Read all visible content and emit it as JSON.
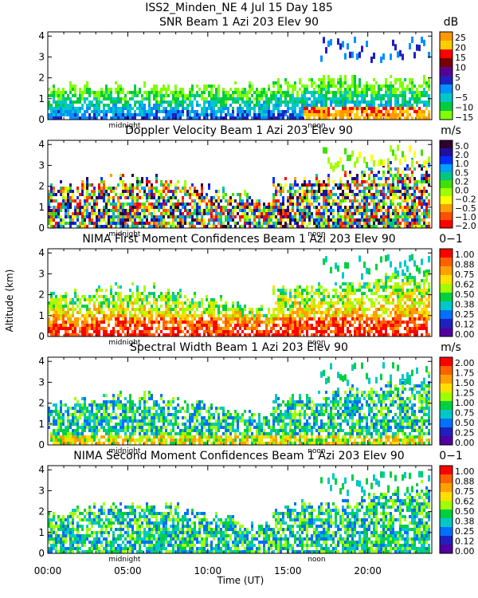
{
  "header": "ISS2_Minden_NE    4 Jul 15 Day 185",
  "ylabel": "Altitude (km)",
  "xlabel": "Time (UT)",
  "x_ticks": [
    "00:00",
    "05:00",
    "10:00",
    "15:00",
    "20:00"
  ],
  "annotations": {
    "midnight": "midnight",
    "noon": "noon"
  },
  "chart_data": [
    {
      "type": "heatmap",
      "title": "SNR Beam 1 Azi 203 Elev 90",
      "units": "dB",
      "y_ticks": [
        "0",
        "1",
        "2",
        "3",
        "4"
      ],
      "ylim": [
        0,
        4.2
      ],
      "xlim_hours": [
        0,
        24
      ],
      "colorbar_labels": [
        "25",
        "20",
        "15",
        "10",
        "5",
        "0",
        "−5",
        "−10",
        "−15"
      ],
      "colors": [
        "#ff9900",
        "#ffcc00",
        "#ff0000",
        "#7a0000",
        "#5a0090",
        "#2020c0",
        "#0090ff",
        "#00c8c8",
        "#00cc40",
        "#80ff00"
      ]
    },
    {
      "type": "heatmap",
      "title": "Doppler Velocity Beam 1 Azi 203 Elev 90",
      "units": "m/s",
      "y_ticks": [
        "0",
        "1",
        "2",
        "3",
        "4"
      ],
      "ylim": [
        0,
        4.2
      ],
      "xlim_hours": [
        0,
        24
      ],
      "colorbar_labels": [
        "5.0",
        "2.0",
        "1.0",
        "0.5",
        "0.2",
        "0.0",
        "−0.2",
        "−0.5",
        "−1.0",
        "−2.0"
      ],
      "colors": [
        "#300030",
        "#2010a0",
        "#0030ff",
        "#00a0ff",
        "#00c880",
        "#40e000",
        "#a0ff00",
        "#ffff00",
        "#ffa000",
        "#ff5000",
        "#ff0000"
      ]
    },
    {
      "type": "heatmap",
      "title": "NIMA First Moment Confidences Beam 1 Azi 203 Elev 90",
      "units": "0−1",
      "y_ticks": [
        "0",
        "1",
        "2",
        "3",
        "4"
      ],
      "ylim": [
        0,
        4.2
      ],
      "xlim_hours": [
        0,
        24
      ],
      "colorbar_labels": [
        "1.00",
        "0.88",
        "0.75",
        "0.62",
        "0.50",
        "0.38",
        "0.25",
        "0.12",
        "0.00"
      ],
      "colors": [
        "#ff0000",
        "#ff6000",
        "#ffa000",
        "#ffe000",
        "#a0ff00",
        "#00d040",
        "#00c8c8",
        "#0070ff",
        "#2020c0",
        "#5000a0"
      ]
    },
    {
      "type": "heatmap",
      "title": "Spectral Width Beam 1 Azi 203 Elev 90",
      "units": "m/s",
      "y_ticks": [
        "0",
        "1",
        "2",
        "3",
        "4"
      ],
      "ylim": [
        0,
        4.2
      ],
      "xlim_hours": [
        0,
        24
      ],
      "colorbar_labels": [
        "2.00",
        "1.75",
        "1.50",
        "1.25",
        "1.00",
        "0.75",
        "0.50",
        "0.25",
        "0.00"
      ],
      "colors": [
        "#ff0000",
        "#ff6000",
        "#ffa000",
        "#ffe000",
        "#a0ff00",
        "#00d040",
        "#00c8c8",
        "#0070ff",
        "#2020c0",
        "#5000a0"
      ]
    },
    {
      "type": "heatmap",
      "title": "NIMA Second Moment Confidences Beam 1 Azi 203 Elev 90",
      "units": "0−1",
      "y_ticks": [
        "0",
        "1",
        "2",
        "3",
        "4"
      ],
      "ylim": [
        0,
        4.2
      ],
      "xlim_hours": [
        0,
        24
      ],
      "colorbar_labels": [
        "1.00",
        "0.88",
        "0.75",
        "0.62",
        "0.50",
        "0.38",
        "0.25",
        "0.12",
        "0.00"
      ],
      "colors": [
        "#ff0000",
        "#ff6000",
        "#ffa000",
        "#ffe000",
        "#a0ff00",
        "#00d040",
        "#00c8c8",
        "#0070ff",
        "#2020c0",
        "#5000a0"
      ]
    }
  ]
}
